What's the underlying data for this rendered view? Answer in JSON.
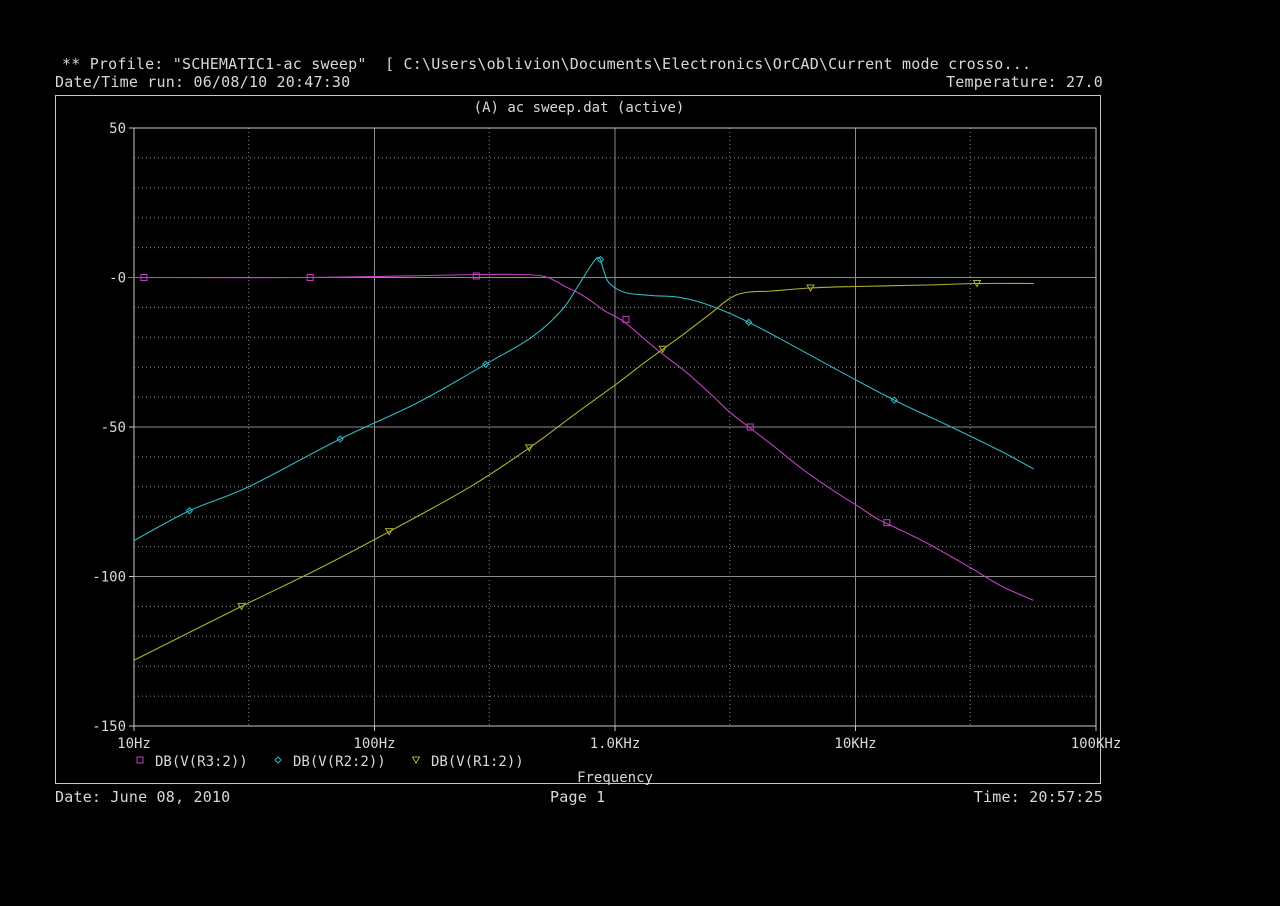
{
  "header": {
    "profile": "** Profile: \"SCHEMATIC1-ac sweep\"  [ C:\\Users\\oblivion\\Documents\\Electronics\\OrCAD\\Current mode crosso...",
    "date_run": "Date/Time run: 06/08/10 20:47:30",
    "temperature": "Temperature: 27.0"
  },
  "footer": {
    "date": "Date: June 08, 2010",
    "page": "Page 1",
    "time": "Time: 20:57:25"
  },
  "colors": {
    "background": "#000000",
    "text": "#d8d8d8",
    "grid": "#8c8c8c",
    "frame": "#c8c8c8"
  },
  "chart_data": {
    "type": "line",
    "title": "(A) ac sweep.dat (active)",
    "xlabel": "Frequency",
    "ylabel": "",
    "xscale": "log",
    "xlim": [
      10,
      100000
    ],
    "ylim": [
      -150,
      50
    ],
    "xticks": [
      {
        "value": 10,
        "label": "10Hz"
      },
      {
        "value": 100,
        "label": "100Hz"
      },
      {
        "value": 1000,
        "label": "1.0KHz"
      },
      {
        "value": 10000,
        "label": "10KHz"
      },
      {
        "value": 100000,
        "label": "100KHz"
      }
    ],
    "yticks": [
      {
        "value": 50,
        "label": "50"
      },
      {
        "value": 0,
        "label": "-0"
      },
      {
        "value": -50,
        "label": "-50"
      },
      {
        "value": -100,
        "label": "-100"
      },
      {
        "value": -150,
        "label": "-150"
      }
    ],
    "grid": true,
    "legend_position": "bottom-left",
    "series": [
      {
        "name": "DB(V(R3:2))",
        "color": "#c040c0",
        "marker": "square",
        "x": [
          10,
          11,
          54,
          270,
          410,
          500,
          560,
          620,
          700,
          800,
          900,
          1000,
          1100,
          1300,
          1600,
          2000,
          2500,
          3000,
          3600,
          4500,
          6000,
          8000,
          10000,
          12500,
          15000,
          20000,
          30000,
          40000,
          55000
        ],
        "y": [
          0,
          0,
          0,
          1,
          1,
          0.5,
          -1,
          -3,
          -5,
          -8,
          -11,
          -13,
          -15,
          -20,
          -26,
          -32,
          -39,
          -45,
          -50,
          -56,
          -64,
          -71,
          -76,
          -81,
          -84,
          -89,
          -97,
          -103,
          -108
        ],
        "marker_x": [
          11,
          54,
          265,
          1110,
          3650,
          13500
        ],
        "marker_y": [
          0,
          0,
          0.5,
          -14,
          -50,
          -82
        ]
      },
      {
        "name": "DB(V(R2:2))",
        "color": "#30b8c0",
        "marker": "diamond",
        "x": [
          10,
          17,
          30,
          72,
          150,
          290,
          450,
          600,
          700,
          780,
          840,
          870,
          900,
          950,
          1100,
          1400,
          1800,
          2200,
          2800,
          3600,
          5000,
          8000,
          14500,
          25000,
          40000,
          55000
        ],
        "y": [
          -88,
          -78,
          -70,
          -54,
          -42,
          -29,
          -20,
          -11,
          -3,
          3,
          6.5,
          6,
          2,
          -2,
          -5,
          -6,
          -6.5,
          -8,
          -11,
          -15,
          -21,
          -30,
          -41,
          -50,
          -58,
          -64
        ],
        "marker_x": [
          17,
          72,
          290,
          870,
          3600,
          14500
        ],
        "marker_y": [
          -78,
          -54,
          -29,
          6,
          -15,
          -41
        ]
      },
      {
        "name": "DB(V(R1:2))",
        "color": "#b0b030",
        "marker": "triangle",
        "x": [
          10,
          28,
          60,
          115,
          250,
          440,
          700,
          1000,
          1300,
          1580,
          2000,
          2500,
          3000,
          3500,
          4500,
          6500,
          10000,
          20000,
          32000,
          55000
        ],
        "y": [
          -128,
          -110,
          -97,
          -85,
          -70,
          -57,
          -45,
          -36,
          -29,
          -24,
          -18,
          -12,
          -7,
          -5,
          -4.5,
          -3.5,
          -3,
          -2.5,
          -2,
          -2
        ],
        "marker_x": [
          28,
          115,
          440,
          1580,
          6500,
          32000
        ],
        "marker_y": [
          -110,
          -85,
          -57,
          -24,
          -3.5,
          -2
        ]
      }
    ]
  }
}
